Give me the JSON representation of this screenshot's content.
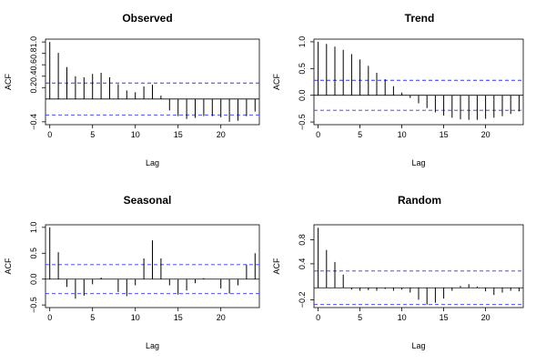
{
  "chart_data": [
    {
      "type": "bar",
      "title": "Observed",
      "xlabel": "Lag",
      "ylabel": "ACF",
      "lags": [
        0,
        1,
        2,
        3,
        4,
        5,
        6,
        7,
        8,
        9,
        10,
        11,
        12,
        13,
        14,
        15,
        16,
        17,
        18,
        19,
        20,
        21,
        22,
        23,
        24
      ],
      "values": [
        1.0,
        0.81,
        0.56,
        0.4,
        0.38,
        0.44,
        0.46,
        0.38,
        0.26,
        0.15,
        0.12,
        0.22,
        0.25,
        0.06,
        -0.2,
        -0.3,
        -0.35,
        -0.33,
        -0.3,
        -0.3,
        -0.32,
        -0.4,
        -0.38,
        -0.3,
        -0.22
      ],
      "conf_limits": [
        0.28,
        -0.28
      ],
      "xlim": [
        -0.5,
        24.5
      ],
      "ylim": [
        -0.45,
        1.05
      ],
      "yticks": [
        {
          "value": -0.4,
          "label": "−0.4"
        },
        {
          "value": 0.2,
          "label": "0.2"
        },
        {
          "value": 0.4,
          "label": "0.4"
        },
        {
          "value": 0.6,
          "label": "0.6"
        },
        {
          "value": 0.8,
          "label": "0.8"
        },
        {
          "value": 1.0,
          "label": "1.0"
        }
      ],
      "xticks": [
        0,
        5,
        10,
        15,
        20
      ]
    },
    {
      "type": "bar",
      "title": "Trend",
      "xlabel": "Lag",
      "ylabel": "ACF",
      "lags": [
        0,
        1,
        2,
        3,
        4,
        5,
        6,
        7,
        8,
        9,
        10,
        11,
        12,
        13,
        14,
        15,
        16,
        17,
        18,
        19,
        20,
        21,
        22,
        23,
        24
      ],
      "values": [
        1.0,
        0.96,
        0.91,
        0.85,
        0.77,
        0.67,
        0.55,
        0.42,
        0.3,
        0.17,
        0.05,
        -0.05,
        -0.15,
        -0.24,
        -0.32,
        -0.38,
        -0.42,
        -0.45,
        -0.46,
        -0.46,
        -0.44,
        -0.42,
        -0.39,
        -0.35,
        -0.3
      ],
      "conf_limits": [
        0.28,
        -0.28
      ],
      "xlim": [
        -0.5,
        24.5
      ],
      "ylim": [
        -0.55,
        1.05
      ],
      "yticks": [
        {
          "value": -0.5,
          "label": "−0.5"
        },
        {
          "value": 0.0,
          "label": "0.0"
        },
        {
          "value": 0.5,
          "label": "0.5"
        },
        {
          "value": 1.0,
          "label": "1.0"
        }
      ],
      "xticks": [
        0,
        5,
        10,
        15,
        20
      ]
    },
    {
      "type": "bar",
      "title": "Seasonal",
      "xlabel": "Lag",
      "ylabel": "ACF",
      "lags": [
        0,
        1,
        2,
        3,
        4,
        5,
        6,
        7,
        8,
        9,
        10,
        11,
        12,
        13,
        14,
        15,
        16,
        17,
        18,
        19,
        20,
        21,
        22,
        23,
        24
      ],
      "values": [
        1.0,
        0.52,
        -0.15,
        -0.38,
        -0.32,
        -0.1,
        0.03,
        0.0,
        -0.25,
        -0.33,
        -0.12,
        0.4,
        0.75,
        0.4,
        -0.12,
        -0.3,
        -0.22,
        -0.08,
        0.02,
        0.0,
        -0.18,
        -0.28,
        -0.12,
        0.28,
        0.5
      ],
      "conf_limits": [
        0.28,
        -0.28
      ],
      "xlim": [
        -0.5,
        24.5
      ],
      "ylim": [
        -0.55,
        1.05
      ],
      "yticks": [
        {
          "value": -0.5,
          "label": "−0.5"
        },
        {
          "value": 0.0,
          "label": "0.0"
        },
        {
          "value": 0.5,
          "label": "0.5"
        },
        {
          "value": 1.0,
          "label": "1.0"
        }
      ],
      "xticks": [
        0,
        5,
        10,
        15,
        20
      ]
    },
    {
      "type": "bar",
      "title": "Random",
      "xlabel": "Lag",
      "ylabel": "ACF",
      "lags": [
        0,
        1,
        2,
        3,
        4,
        5,
        6,
        7,
        8,
        9,
        10,
        11,
        12,
        13,
        14,
        15,
        16,
        17,
        18,
        19,
        20,
        21,
        22,
        23,
        24
      ],
      "values": [
        1.0,
        0.63,
        0.43,
        0.22,
        -0.03,
        -0.05,
        -0.04,
        -0.05,
        -0.02,
        -0.05,
        -0.03,
        -0.08,
        -0.2,
        -0.28,
        -0.25,
        -0.18,
        -0.05,
        0.03,
        0.06,
        0.02,
        -0.06,
        -0.12,
        -0.08,
        -0.05,
        -0.06
      ],
      "conf_limits": [
        0.28,
        -0.28
      ],
      "xlim": [
        -0.5,
        24.5
      ],
      "ylim": [
        -0.33,
        1.05
      ],
      "yticks": [
        {
          "value": -0.2,
          "label": "−0.2"
        },
        {
          "value": 0.4,
          "label": "0.4"
        },
        {
          "value": 0.8,
          "label": "0.8"
        }
      ],
      "xticks": [
        0,
        5,
        10,
        15,
        20
      ]
    }
  ],
  "colors": {
    "bars": "#000000",
    "conf_line": "#3333ff",
    "frame": "#000000"
  }
}
